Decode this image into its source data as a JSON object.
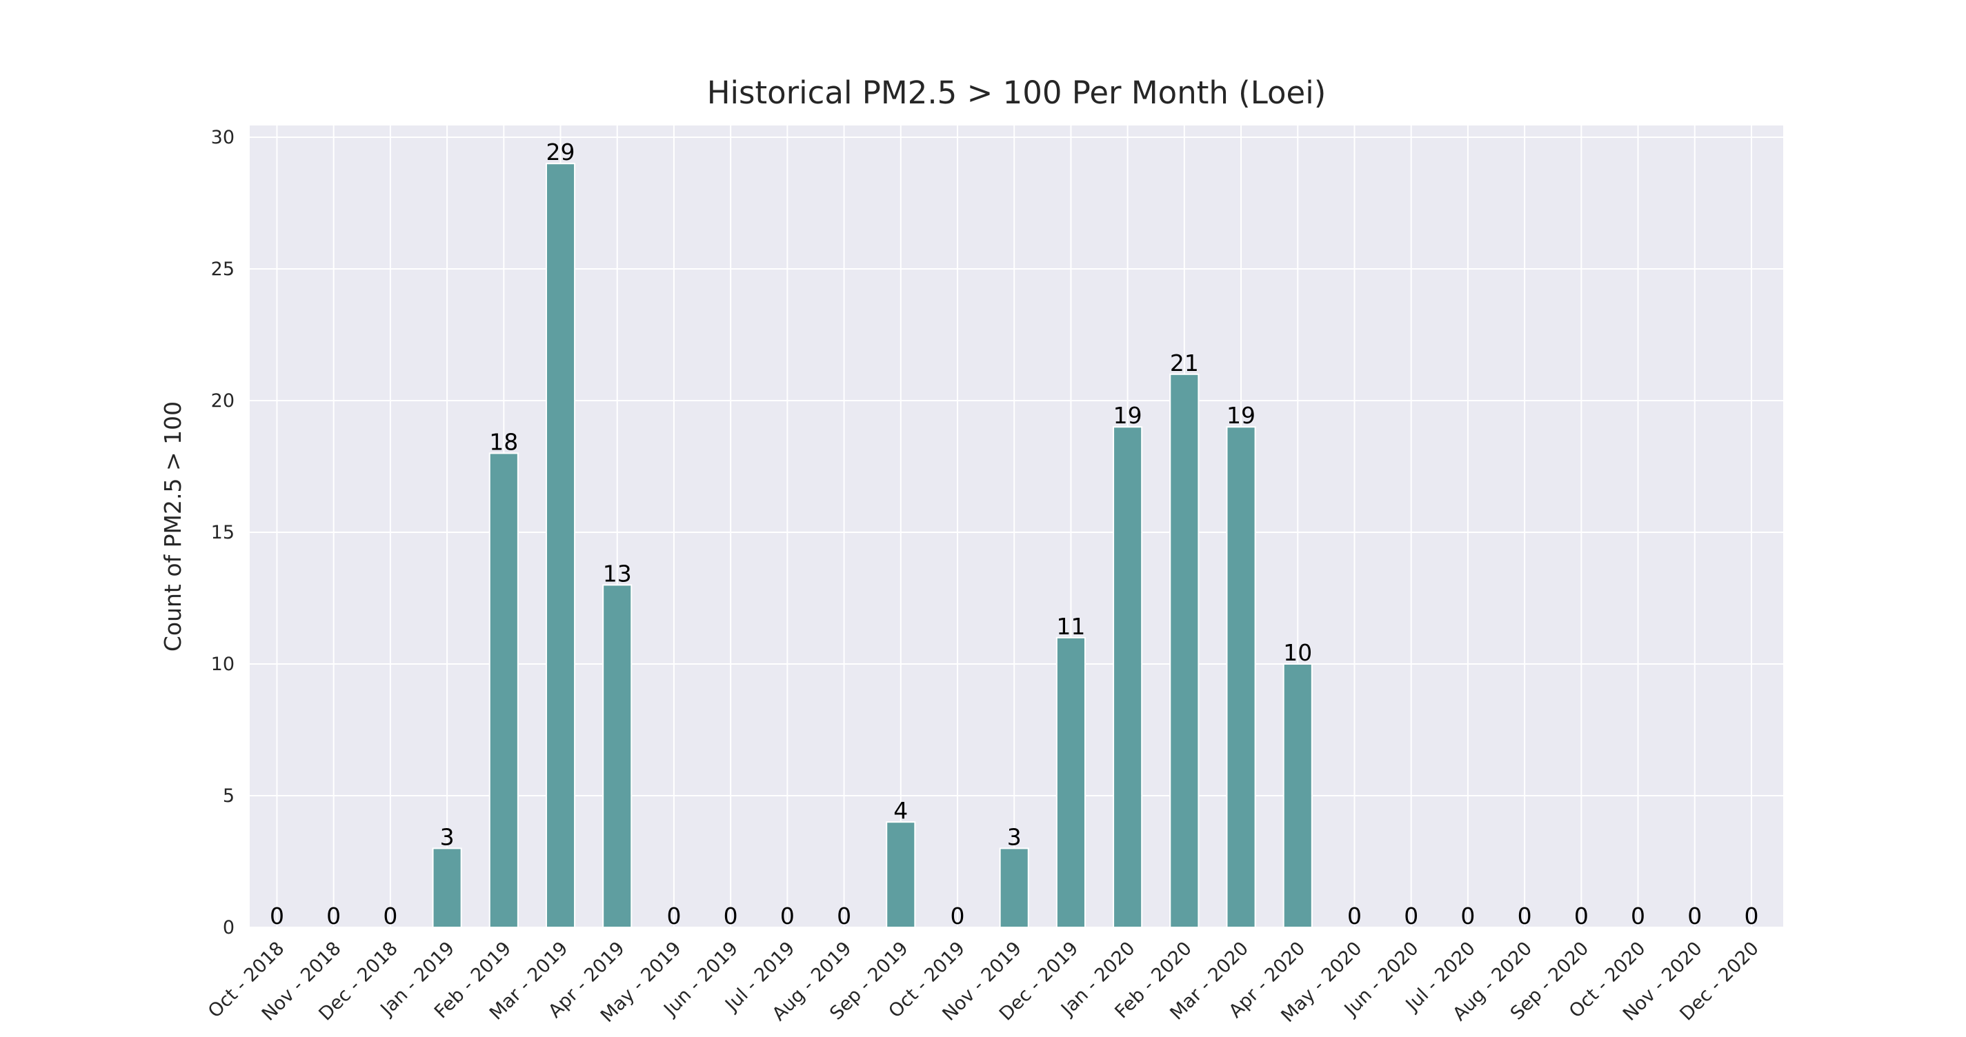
{
  "chart_data": {
    "type": "bar",
    "title": "Historical PM2.5 > 100 Per Month (Loei)",
    "xlabel": "",
    "ylabel": "Count of PM2.5 > 100",
    "ylim": [
      0,
      30
    ],
    "yticks": [
      0,
      5,
      10,
      15,
      20,
      25,
      30
    ],
    "grid": true,
    "categories": [
      "Oct - 2018",
      "Nov - 2018",
      "Dec - 2018",
      "Jan - 2019",
      "Feb - 2019",
      "Mar - 2019",
      "Apr - 2019",
      "May - 2019",
      "Jun - 2019",
      "Jul - 2019",
      "Aug - 2019",
      "Sep - 2019",
      "Oct - 2019",
      "Nov - 2019",
      "Dec - 2019",
      "Jan - 2020",
      "Feb - 2020",
      "Mar - 2020",
      "Apr - 2020",
      "May - 2020",
      "Jun - 2020",
      "Jul - 2020",
      "Aug - 2020",
      "Sep - 2020",
      "Oct - 2020",
      "Nov - 2020",
      "Dec - 2020"
    ],
    "values": [
      0,
      0,
      0,
      3,
      18,
      29,
      13,
      0,
      0,
      0,
      0,
      4,
      0,
      3,
      11,
      19,
      21,
      19,
      10,
      0,
      0,
      0,
      0,
      0,
      0,
      0,
      0
    ],
    "colors": {
      "bar": "#5f9ea0",
      "plot_background": "#eaeaf2",
      "grid": "#ffffff",
      "text": "#262626"
    }
  }
}
